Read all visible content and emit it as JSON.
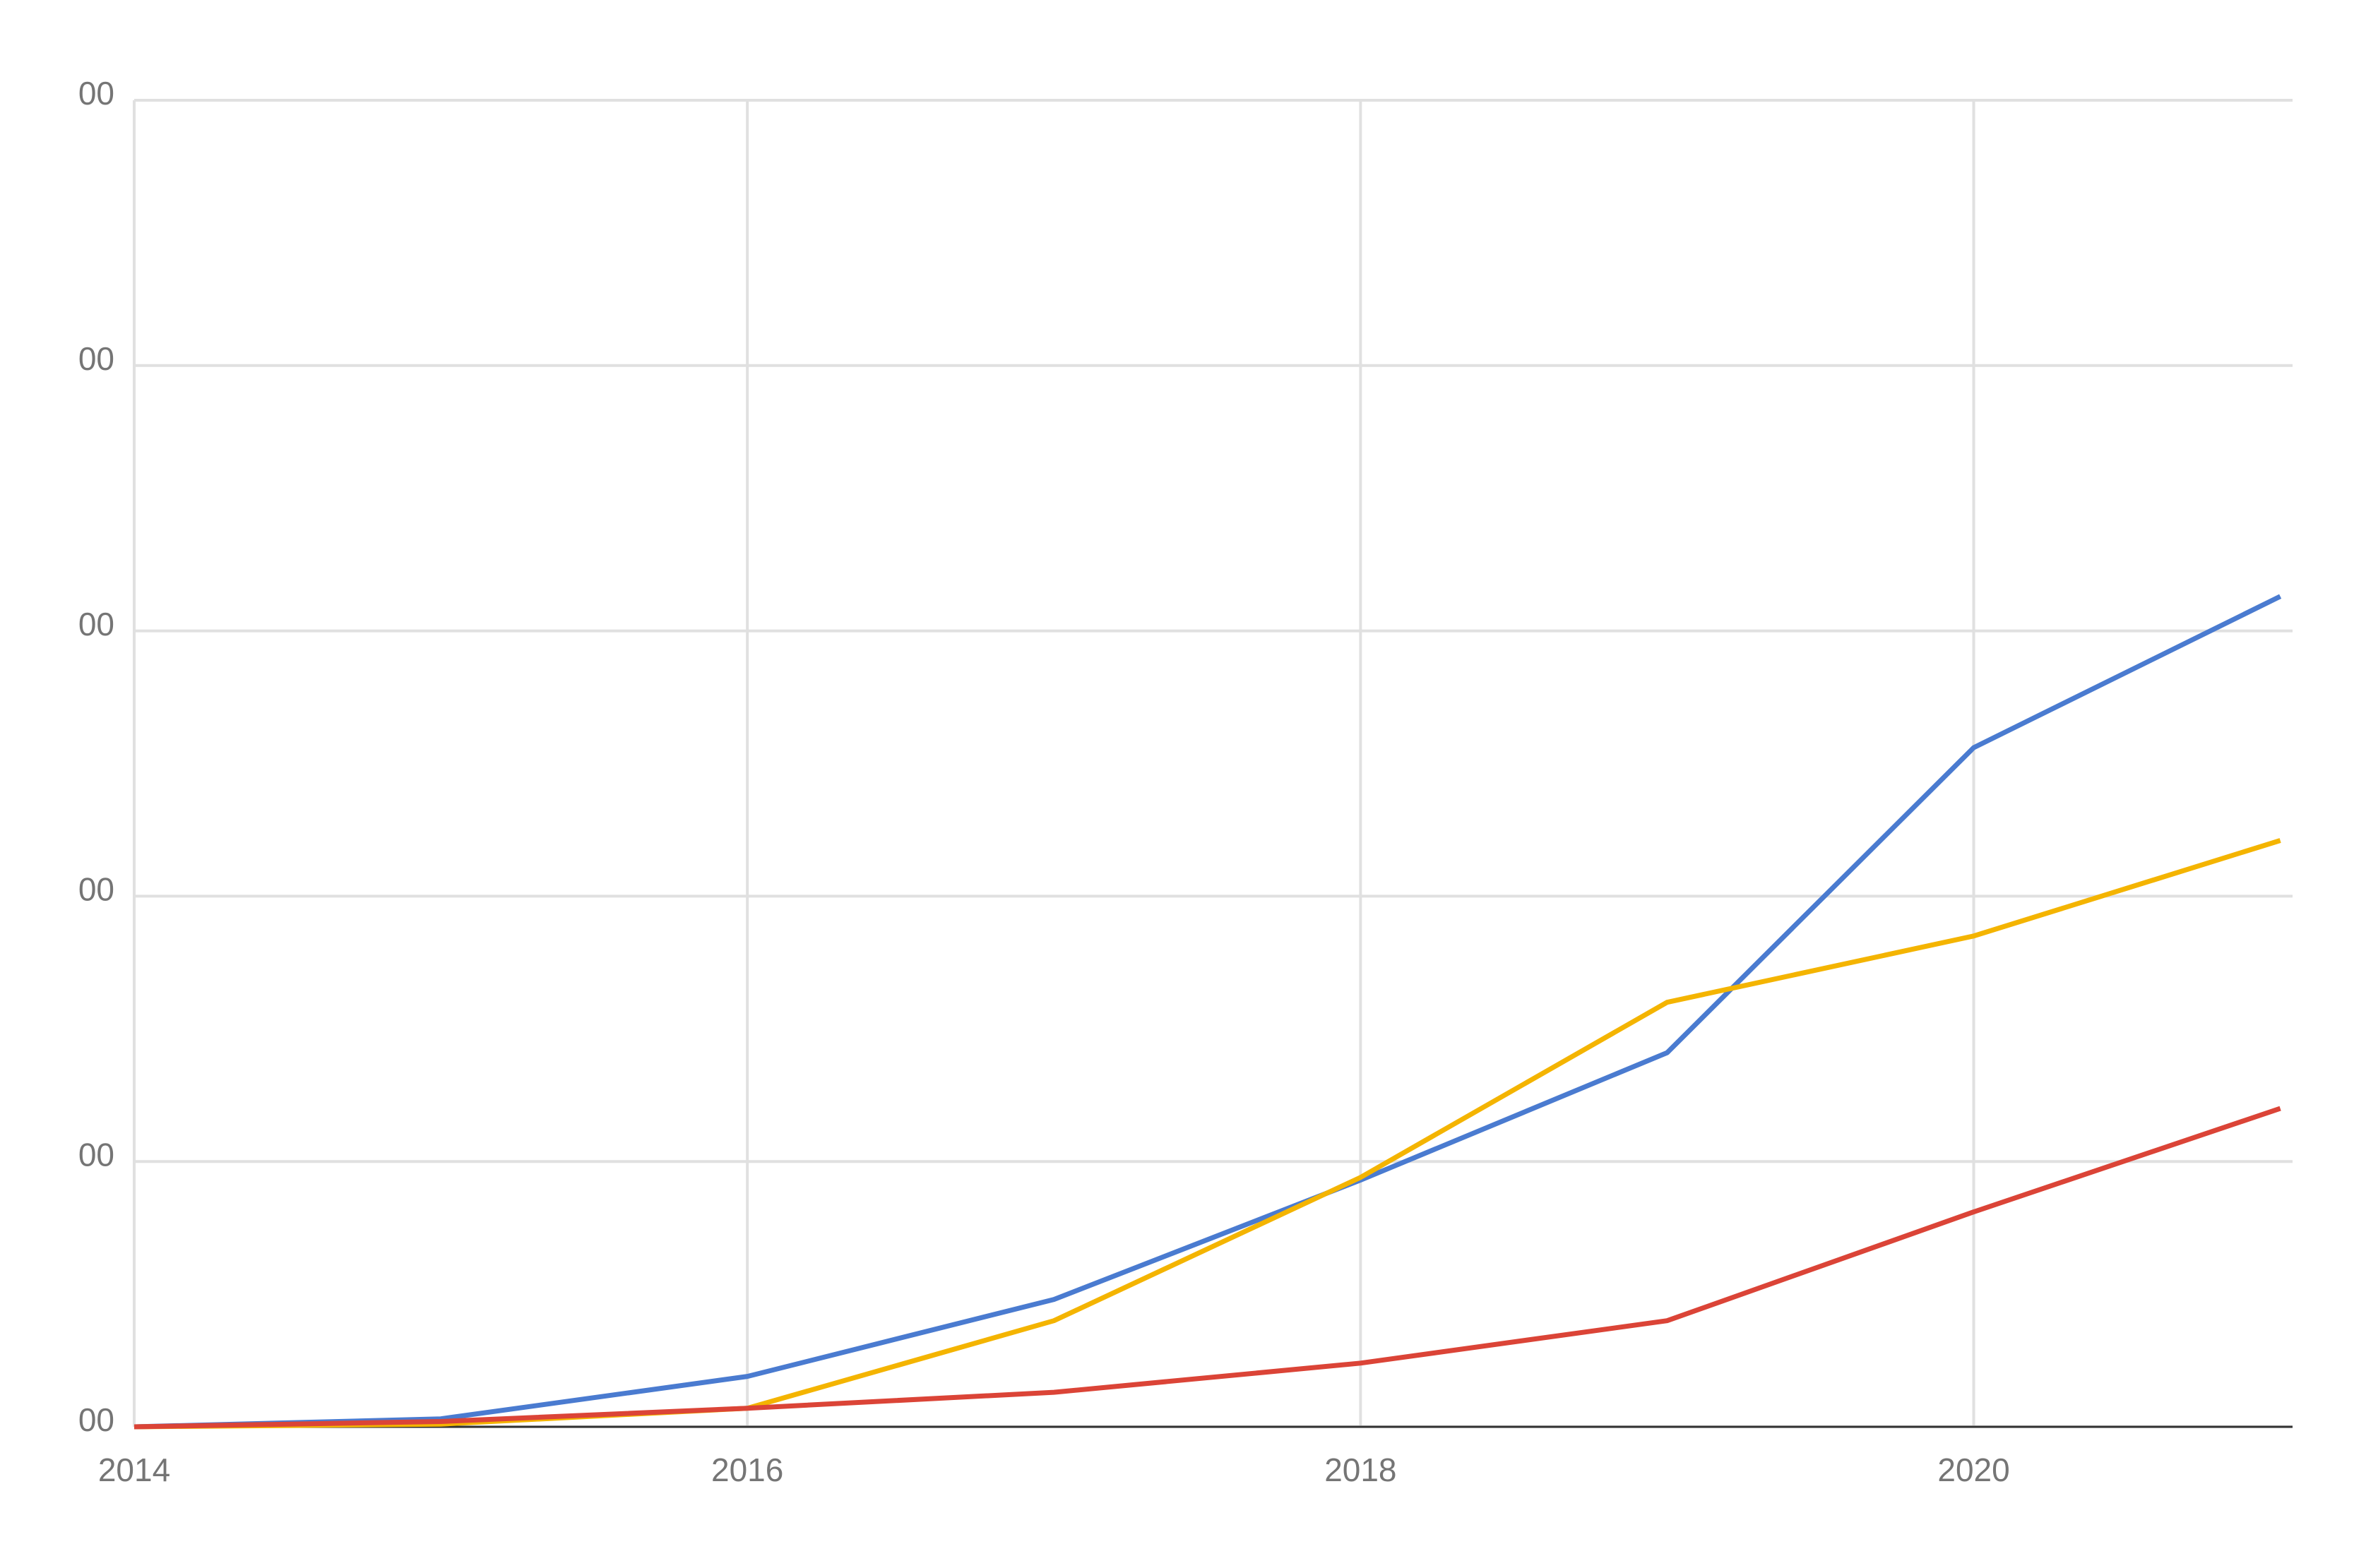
{
  "chart_data": {
    "type": "line",
    "x": [
      2014,
      2015,
      2016,
      2017,
      2018,
      2019,
      2020,
      2021
    ],
    "series": [
      {
        "color": "#4a7bd0",
        "values": [
          0,
          3,
          19,
          48,
          93,
          141,
          256,
          313
        ]
      },
      {
        "color": "#f4b400",
        "values": [
          0,
          1,
          7,
          40,
          94,
          160,
          185,
          221
        ]
      },
      {
        "color": "#db4437",
        "values": [
          0,
          2,
          7,
          13,
          24,
          40,
          81,
          120
        ]
      }
    ],
    "xlim": [
      2014,
      2021.04
    ],
    "xticks": [
      2014,
      2016,
      2018,
      2020
    ],
    "ylim": [
      0,
      500
    ],
    "yticks": [
      {
        "value": 0,
        "label": "00"
      },
      {
        "value": 100,
        "label": "00"
      },
      {
        "value": 200,
        "label": "00"
      },
      {
        "value": 300,
        "label": "00"
      },
      {
        "value": 400,
        "label": "00"
      },
      {
        "value": 500,
        "label": "00"
      }
    ],
    "grid": true
  }
}
